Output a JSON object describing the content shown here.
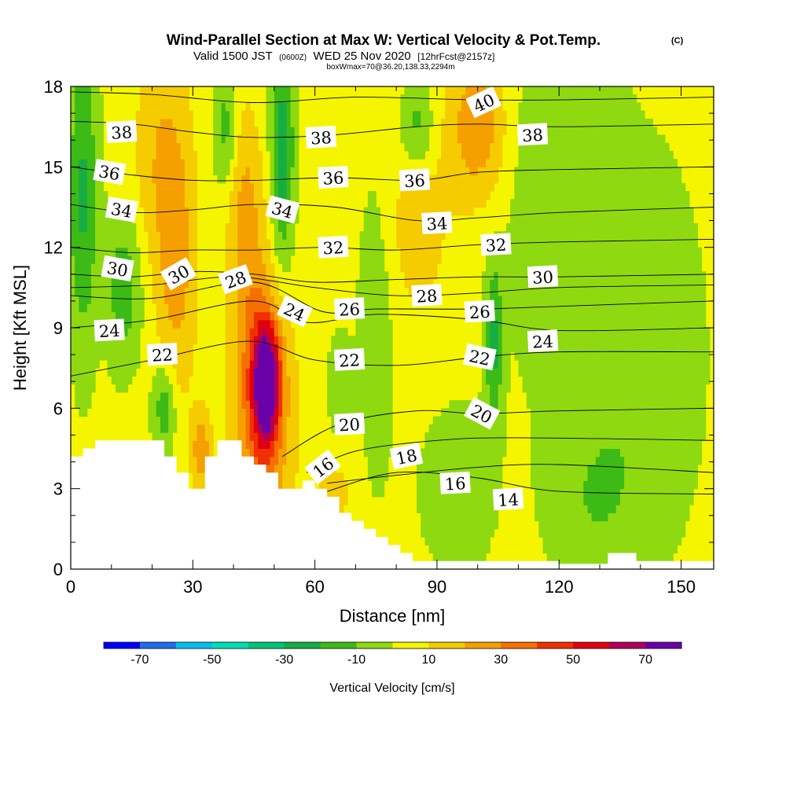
{
  "title_main": "Wind-Parallel Section at Max W: Vertical Velocity & Pot.Temp.",
  "title_mark": "(C)",
  "subtitle_a": "Valid 1500 JST",
  "subtitle_b": "(0600Z)",
  "subtitle_c": "WED 25 Nov 2020",
  "subtitle_d": "[12hrFcst@2157z]",
  "subtitle_e": "boxWmax=70@36.20,138.33,2294m",
  "colorbar_label": "Vertical Velocity [cm/s]",
  "colors": {
    "background": "#ffffff",
    "terrain": "#ffffff",
    "contour": "#000000",
    "scale": [
      "#0000ff",
      "#1e6ff0",
      "#00bfef",
      "#00dfb7",
      "#00c476",
      "#15ad44",
      "#3cba16",
      "#8fd911",
      "#f5f500",
      "#f5cc00",
      "#f5a000",
      "#f57000",
      "#f03000",
      "#e00010",
      "#b0005a",
      "#6a00a8"
    ]
  },
  "chart_data": {
    "type": "heatmap",
    "subtype": "cross-section (filled vertical velocity + potential temperature contours)",
    "xlabel": "Distance [nm]",
    "ylabel": "Height [Kft MSL]",
    "xlim": [
      0,
      158
    ],
    "ylim": [
      0,
      18
    ],
    "xticks": [
      0,
      30,
      60,
      90,
      120,
      150
    ],
    "yticks": [
      0,
      3,
      6,
      9,
      12,
      15,
      18
    ],
    "colorbar": {
      "ticks": [
        -70,
        -50,
        -30,
        -10,
        10,
        30,
        50,
        70
      ],
      "bounds": [
        -80,
        -70,
        -60,
        -50,
        -40,
        -30,
        -20,
        -10,
        0,
        10,
        20,
        30,
        40,
        50,
        60,
        70,
        80
      ]
    },
    "max_vertical_velocity": {
      "value": 70,
      "x": 48,
      "y": 7
    },
    "terrain": [
      [
        0,
        4.2
      ],
      [
        3,
        4.2
      ],
      [
        3,
        4.5
      ],
      [
        6,
        4.5
      ],
      [
        6,
        4.8
      ],
      [
        23,
        4.8
      ],
      [
        23,
        4.2
      ],
      [
        26,
        4.2
      ],
      [
        26,
        3.6
      ],
      [
        29,
        3.6
      ],
      [
        29,
        3.0
      ],
      [
        33,
        3.0
      ],
      [
        33,
        4.2
      ],
      [
        36,
        4.2
      ],
      [
        36,
        4.8
      ],
      [
        42,
        4.8
      ],
      [
        42,
        4.2
      ],
      [
        45,
        4.2
      ],
      [
        45,
        3.9
      ],
      [
        48,
        3.9
      ],
      [
        48,
        3.6
      ],
      [
        51,
        3.6
      ],
      [
        51,
        3.0
      ],
      [
        57,
        3.0
      ],
      [
        57,
        3.3
      ],
      [
        60,
        3.3
      ],
      [
        60,
        3.0
      ],
      [
        63,
        3.0
      ],
      [
        63,
        2.7
      ],
      [
        66,
        2.7
      ],
      [
        66,
        2.1
      ],
      [
        69,
        2.1
      ],
      [
        69,
        1.8
      ],
      [
        72,
        1.8
      ],
      [
        72,
        1.5
      ],
      [
        75,
        1.5
      ],
      [
        75,
        1.2
      ],
      [
        78,
        1.2
      ],
      [
        78,
        0.9
      ],
      [
        81,
        0.9
      ],
      [
        81,
        0.6
      ],
      [
        84,
        0.6
      ],
      [
        84,
        0.3
      ],
      [
        120,
        0.3
      ],
      [
        120,
        0.2
      ],
      [
        132,
        0.2
      ],
      [
        132,
        0.6
      ],
      [
        139,
        0.6
      ],
      [
        139,
        0.3
      ],
      [
        158,
        0.3
      ]
    ],
    "vertical_velocity_features": [
      {
        "x": 48,
        "y": 7.0,
        "w": 70,
        "sx": 2.2,
        "sy": 1.5
      },
      {
        "x": 47,
        "y": 6.0,
        "w": 35,
        "sx": 5.0,
        "sy": 3.5
      },
      {
        "x": 43,
        "y": 13.0,
        "w": 20,
        "sx": 3.0,
        "sy": 3.0
      },
      {
        "x": 26,
        "y": 11.0,
        "w": 20,
        "sx": 3.5,
        "sy": 3.5
      },
      {
        "x": 32,
        "y": 4.5,
        "w": 25,
        "sx": 1.6,
        "sy": 1.0
      },
      {
        "x": 22,
        "y": 15.5,
        "w": 15,
        "sx": 5.0,
        "sy": 3.0
      },
      {
        "x": 100,
        "y": 16.5,
        "w": 25,
        "sx": 5.0,
        "sy": 2.0
      },
      {
        "x": 85,
        "y": 13.0,
        "w": 12,
        "sx": 6.0,
        "sy": 3.0
      },
      {
        "x": 65,
        "y": 3.0,
        "w": 10,
        "sx": 4.0,
        "sy": 1.5
      },
      {
        "x": 3,
        "y": 14.0,
        "w": -25,
        "sx": 2.5,
        "sy": 4.0
      },
      {
        "x": 13,
        "y": 10.5,
        "w": -20,
        "sx": 3.0,
        "sy": 2.0
      },
      {
        "x": 52,
        "y": 15.5,
        "w": -30,
        "sx": 2.0,
        "sy": 3.0
      },
      {
        "x": 38,
        "y": 16.5,
        "w": -18,
        "sx": 2.0,
        "sy": 1.5
      },
      {
        "x": 23,
        "y": 6.0,
        "w": -22,
        "sx": 2.0,
        "sy": 1.2
      },
      {
        "x": 104,
        "y": 8.5,
        "w": -25,
        "sx": 1.5,
        "sy": 2.0
      },
      {
        "x": 85,
        "y": 16.5,
        "w": -20,
        "sx": 3.0,
        "sy": 1.2
      },
      {
        "x": 120,
        "y": 14.0,
        "w": -12,
        "sx": 9.0,
        "sy": 5.0
      },
      {
        "x": 140,
        "y": 8.0,
        "w": -12,
        "sx": 10.0,
        "sy": 5.0
      },
      {
        "x": 75,
        "y": 9.0,
        "w": -12,
        "sx": 3.0,
        "sy": 4.0
      },
      {
        "x": 95,
        "y": 3.0,
        "w": -12,
        "sx": 6.0,
        "sy": 2.0
      },
      {
        "x": 128,
        "y": 2.5,
        "w": -10,
        "sx": 8.0,
        "sy": 2.0
      },
      {
        "x": 66,
        "y": 6.5,
        "w": -12,
        "sx": 2.0,
        "sy": 1.5
      }
    ],
    "potential_temperature_contours": [
      {
        "value": 14,
        "points": [
          [
            63,
            2.9
          ],
          [
            80,
            3.6
          ],
          [
            100,
            3.4
          ],
          [
            120,
            2.9
          ],
          [
            158,
            2.8
          ]
        ]
      },
      {
        "value": 16,
        "points": [
          [
            63,
            3.2
          ],
          [
            80,
            3.5
          ],
          [
            100,
            3.8
          ],
          [
            120,
            3.9
          ],
          [
            158,
            3.6
          ]
        ]
      },
      {
        "value": 18,
        "points": [
          [
            58,
            3.6
          ],
          [
            70,
            4.4
          ],
          [
            90,
            4.8
          ],
          [
            110,
            4.9
          ],
          [
            158,
            4.8
          ]
        ]
      },
      {
        "value": 20,
        "points": [
          [
            52,
            4.2
          ],
          [
            66,
            5.4
          ],
          [
            85,
            5.9
          ],
          [
            100,
            5.8
          ],
          [
            120,
            5.9
          ],
          [
            158,
            6.0
          ]
        ]
      },
      {
        "value": 22,
        "points": [
          [
            0,
            7.2
          ],
          [
            20,
            7.8
          ],
          [
            44,
            8.5
          ],
          [
            60,
            7.8
          ],
          [
            80,
            7.6
          ],
          [
            100,
            7.9
          ],
          [
            120,
            8.1
          ],
          [
            158,
            8.1
          ]
        ]
      },
      {
        "value": 24,
        "points": [
          [
            0,
            9.0
          ],
          [
            20,
            9.3
          ],
          [
            45,
            10.0
          ],
          [
            58,
            9.2
          ],
          [
            75,
            9.5
          ],
          [
            100,
            9.3
          ],
          [
            120,
            8.9
          ],
          [
            158,
            9.0
          ]
        ]
      },
      {
        "value": 26,
        "points": [
          [
            0,
            10.2
          ],
          [
            20,
            10.1
          ],
          [
            45,
            10.7
          ],
          [
            62,
            9.6
          ],
          [
            75,
            9.7
          ],
          [
            100,
            9.7
          ],
          [
            120,
            9.8
          ],
          [
            158,
            10.0
          ]
        ]
      },
      {
        "value": 28,
        "points": [
          [
            0,
            10.5
          ],
          [
            20,
            10.6
          ],
          [
            40,
            10.9
          ],
          [
            60,
            10.5
          ],
          [
            80,
            10.2
          ],
          [
            100,
            10.3
          ],
          [
            120,
            10.5
          ],
          [
            158,
            10.6
          ]
        ]
      },
      {
        "value": 30,
        "points": [
          [
            0,
            11.0
          ],
          [
            15,
            10.9
          ],
          [
            30,
            11.1
          ],
          [
            45,
            11.0
          ],
          [
            60,
            10.7
          ],
          [
            80,
            10.8
          ],
          [
            100,
            10.9
          ],
          [
            120,
            10.9
          ],
          [
            158,
            11.0
          ]
        ]
      },
      {
        "value": 32,
        "points": [
          [
            0,
            12.0
          ],
          [
            15,
            11.8
          ],
          [
            30,
            11.9
          ],
          [
            45,
            11.9
          ],
          [
            62,
            12.0
          ],
          [
            80,
            11.9
          ],
          [
            100,
            12.1
          ],
          [
            120,
            12.2
          ],
          [
            158,
            12.3
          ]
        ]
      },
      {
        "value": 34,
        "points": [
          [
            0,
            13.6
          ],
          [
            15,
            13.3
          ],
          [
            30,
            13.4
          ],
          [
            45,
            13.6
          ],
          [
            65,
            13.5
          ],
          [
            85,
            13.0
          ],
          [
            100,
            13.1
          ],
          [
            120,
            13.3
          ],
          [
            158,
            13.5
          ]
        ]
      },
      {
        "value": 36,
        "points": [
          [
            0,
            15.0
          ],
          [
            15,
            14.7
          ],
          [
            30,
            14.5
          ],
          [
            45,
            14.5
          ],
          [
            65,
            14.6
          ],
          [
            85,
            14.5
          ],
          [
            100,
            14.8
          ],
          [
            120,
            14.9
          ],
          [
            158,
            15.0
          ]
        ]
      },
      {
        "value": 38,
        "points": [
          [
            0,
            16.7
          ],
          [
            15,
            16.6
          ],
          [
            30,
            16.3
          ],
          [
            45,
            16.1
          ],
          [
            65,
            16.2
          ],
          [
            85,
            16.5
          ],
          [
            100,
            16.6
          ],
          [
            120,
            16.5
          ],
          [
            158,
            16.6
          ]
        ]
      },
      {
        "value": 40,
        "points": [
          [
            0,
            17.8
          ],
          [
            20,
            17.7
          ],
          [
            45,
            17.4
          ],
          [
            70,
            17.6
          ],
          [
            100,
            17.5
          ],
          [
            120,
            17.5
          ],
          [
            158,
            17.6
          ]
        ]
      }
    ],
    "contour_labels": [
      {
        "text": "38",
        "x": 12.5,
        "y": 16.3,
        "rot": -3
      },
      {
        "text": "36",
        "x": 9.5,
        "y": 14.8,
        "rot": 10
      },
      {
        "text": "34",
        "x": 12.5,
        "y": 13.4,
        "rot": 10
      },
      {
        "text": "30",
        "x": 11.5,
        "y": 11.2,
        "rot": 10
      },
      {
        "text": "24",
        "x": 9.5,
        "y": 8.9,
        "rot": -3
      },
      {
        "text": "22",
        "x": 22.5,
        "y": 8.0,
        "rot": -3
      },
      {
        "text": "30",
        "x": 26.5,
        "y": 11.0,
        "rot": -30
      },
      {
        "text": "28",
        "x": 40.5,
        "y": 10.8,
        "rot": -20
      },
      {
        "text": "34",
        "x": 52.0,
        "y": 13.4,
        "rot": 15
      },
      {
        "text": "24",
        "x": 55.0,
        "y": 9.6,
        "rot": 25
      },
      {
        "text": "38",
        "x": 61.5,
        "y": 16.1,
        "rot": -3
      },
      {
        "text": "36",
        "x": 64.5,
        "y": 14.6,
        "rot": -3
      },
      {
        "text": "32",
        "x": 64.5,
        "y": 12.0,
        "rot": -3
      },
      {
        "text": "26",
        "x": 68.5,
        "y": 9.7,
        "rot": -3
      },
      {
        "text": "22",
        "x": 68.5,
        "y": 7.8,
        "rot": -3
      },
      {
        "text": "20",
        "x": 68.5,
        "y": 5.4,
        "rot": -3
      },
      {
        "text": "16",
        "x": 62.0,
        "y": 3.8,
        "rot": -38
      },
      {
        "text": "36",
        "x": 84.5,
        "y": 14.5,
        "rot": -3
      },
      {
        "text": "34",
        "x": 90.0,
        "y": 12.9,
        "rot": -3
      },
      {
        "text": "28",
        "x": 87.5,
        "y": 10.2,
        "rot": -3
      },
      {
        "text": "18",
        "x": 82.5,
        "y": 4.2,
        "rot": -12
      },
      {
        "text": "16",
        "x": 94.5,
        "y": 3.2,
        "rot": -3
      },
      {
        "text": "40",
        "x": 101.5,
        "y": 17.4,
        "rot": -25
      },
      {
        "text": "38",
        "x": 113.5,
        "y": 16.2,
        "rot": -3
      },
      {
        "text": "32",
        "x": 104.5,
        "y": 12.1,
        "rot": -3
      },
      {
        "text": "26",
        "x": 100.5,
        "y": 9.6,
        "rot": -3
      },
      {
        "text": "22",
        "x": 100.5,
        "y": 7.9,
        "rot": 12
      },
      {
        "text": "20",
        "x": 101.0,
        "y": 5.8,
        "rot": 28
      },
      {
        "text": "30",
        "x": 116.0,
        "y": 10.9,
        "rot": -3
      },
      {
        "text": "24",
        "x": 116.0,
        "y": 8.5,
        "rot": -3
      },
      {
        "text": "14",
        "x": 107.5,
        "y": 2.6,
        "rot": -3
      }
    ]
  }
}
